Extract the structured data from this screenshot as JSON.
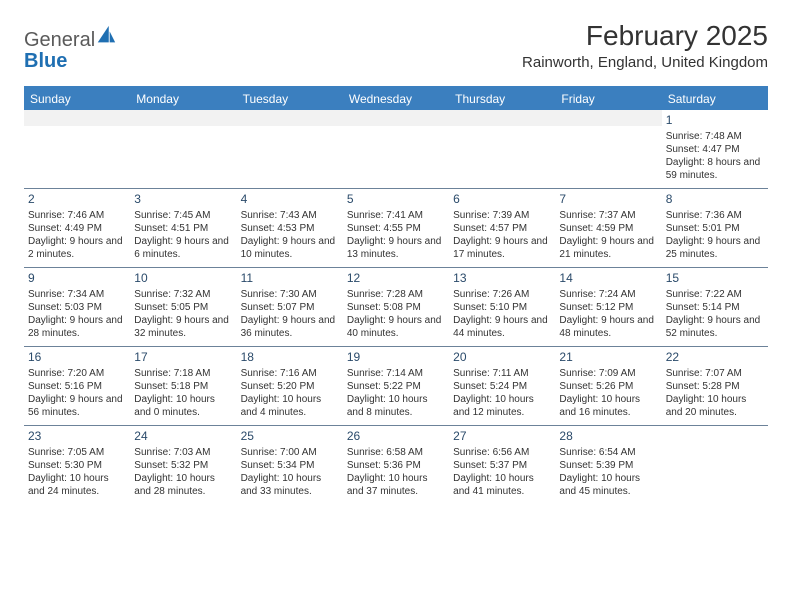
{
  "brand": {
    "part1": "General",
    "part2": "Blue"
  },
  "title": "February 2025",
  "location": "Rainworth, England, United Kingdom",
  "colors": {
    "header_bg": "#3b7fbf",
    "header_text": "#ffffff",
    "rule": "#6c8299",
    "daynum": "#2a4a6a",
    "text": "#333333",
    "empty": "#f2f2f2",
    "logo_gray": "#5a5a5a",
    "logo_blue": "#1f6fb2"
  },
  "typography": {
    "title_fontsize": 28,
    "location_fontsize": 15,
    "dow_fontsize": 12,
    "daynum_fontsize": 12,
    "body_fontsize": 10,
    "logo_fontsize": 20
  },
  "days_of_week": [
    "Sunday",
    "Monday",
    "Tuesday",
    "Wednesday",
    "Thursday",
    "Friday",
    "Saturday"
  ],
  "weeks": [
    [
      null,
      null,
      null,
      null,
      null,
      null,
      {
        "n": "1",
        "sunrise": "Sunrise: 7:48 AM",
        "sunset": "Sunset: 4:47 PM",
        "daylight": "Daylight: 8 hours and 59 minutes."
      }
    ],
    [
      {
        "n": "2",
        "sunrise": "Sunrise: 7:46 AM",
        "sunset": "Sunset: 4:49 PM",
        "daylight": "Daylight: 9 hours and 2 minutes."
      },
      {
        "n": "3",
        "sunrise": "Sunrise: 7:45 AM",
        "sunset": "Sunset: 4:51 PM",
        "daylight": "Daylight: 9 hours and 6 minutes."
      },
      {
        "n": "4",
        "sunrise": "Sunrise: 7:43 AM",
        "sunset": "Sunset: 4:53 PM",
        "daylight": "Daylight: 9 hours and 10 minutes."
      },
      {
        "n": "5",
        "sunrise": "Sunrise: 7:41 AM",
        "sunset": "Sunset: 4:55 PM",
        "daylight": "Daylight: 9 hours and 13 minutes."
      },
      {
        "n": "6",
        "sunrise": "Sunrise: 7:39 AM",
        "sunset": "Sunset: 4:57 PM",
        "daylight": "Daylight: 9 hours and 17 minutes."
      },
      {
        "n": "7",
        "sunrise": "Sunrise: 7:37 AM",
        "sunset": "Sunset: 4:59 PM",
        "daylight": "Daylight: 9 hours and 21 minutes."
      },
      {
        "n": "8",
        "sunrise": "Sunrise: 7:36 AM",
        "sunset": "Sunset: 5:01 PM",
        "daylight": "Daylight: 9 hours and 25 minutes."
      }
    ],
    [
      {
        "n": "9",
        "sunrise": "Sunrise: 7:34 AM",
        "sunset": "Sunset: 5:03 PM",
        "daylight": "Daylight: 9 hours and 28 minutes."
      },
      {
        "n": "10",
        "sunrise": "Sunrise: 7:32 AM",
        "sunset": "Sunset: 5:05 PM",
        "daylight": "Daylight: 9 hours and 32 minutes."
      },
      {
        "n": "11",
        "sunrise": "Sunrise: 7:30 AM",
        "sunset": "Sunset: 5:07 PM",
        "daylight": "Daylight: 9 hours and 36 minutes."
      },
      {
        "n": "12",
        "sunrise": "Sunrise: 7:28 AM",
        "sunset": "Sunset: 5:08 PM",
        "daylight": "Daylight: 9 hours and 40 minutes."
      },
      {
        "n": "13",
        "sunrise": "Sunrise: 7:26 AM",
        "sunset": "Sunset: 5:10 PM",
        "daylight": "Daylight: 9 hours and 44 minutes."
      },
      {
        "n": "14",
        "sunrise": "Sunrise: 7:24 AM",
        "sunset": "Sunset: 5:12 PM",
        "daylight": "Daylight: 9 hours and 48 minutes."
      },
      {
        "n": "15",
        "sunrise": "Sunrise: 7:22 AM",
        "sunset": "Sunset: 5:14 PM",
        "daylight": "Daylight: 9 hours and 52 minutes."
      }
    ],
    [
      {
        "n": "16",
        "sunrise": "Sunrise: 7:20 AM",
        "sunset": "Sunset: 5:16 PM",
        "daylight": "Daylight: 9 hours and 56 minutes."
      },
      {
        "n": "17",
        "sunrise": "Sunrise: 7:18 AM",
        "sunset": "Sunset: 5:18 PM",
        "daylight": "Daylight: 10 hours and 0 minutes."
      },
      {
        "n": "18",
        "sunrise": "Sunrise: 7:16 AM",
        "sunset": "Sunset: 5:20 PM",
        "daylight": "Daylight: 10 hours and 4 minutes."
      },
      {
        "n": "19",
        "sunrise": "Sunrise: 7:14 AM",
        "sunset": "Sunset: 5:22 PM",
        "daylight": "Daylight: 10 hours and 8 minutes."
      },
      {
        "n": "20",
        "sunrise": "Sunrise: 7:11 AM",
        "sunset": "Sunset: 5:24 PM",
        "daylight": "Daylight: 10 hours and 12 minutes."
      },
      {
        "n": "21",
        "sunrise": "Sunrise: 7:09 AM",
        "sunset": "Sunset: 5:26 PM",
        "daylight": "Daylight: 10 hours and 16 minutes."
      },
      {
        "n": "22",
        "sunrise": "Sunrise: 7:07 AM",
        "sunset": "Sunset: 5:28 PM",
        "daylight": "Daylight: 10 hours and 20 minutes."
      }
    ],
    [
      {
        "n": "23",
        "sunrise": "Sunrise: 7:05 AM",
        "sunset": "Sunset: 5:30 PM",
        "daylight": "Daylight: 10 hours and 24 minutes."
      },
      {
        "n": "24",
        "sunrise": "Sunrise: 7:03 AM",
        "sunset": "Sunset: 5:32 PM",
        "daylight": "Daylight: 10 hours and 28 minutes."
      },
      {
        "n": "25",
        "sunrise": "Sunrise: 7:00 AM",
        "sunset": "Sunset: 5:34 PM",
        "daylight": "Daylight: 10 hours and 33 minutes."
      },
      {
        "n": "26",
        "sunrise": "Sunrise: 6:58 AM",
        "sunset": "Sunset: 5:36 PM",
        "daylight": "Daylight: 10 hours and 37 minutes."
      },
      {
        "n": "27",
        "sunrise": "Sunrise: 6:56 AM",
        "sunset": "Sunset: 5:37 PM",
        "daylight": "Daylight: 10 hours and 41 minutes."
      },
      {
        "n": "28",
        "sunrise": "Sunrise: 6:54 AM",
        "sunset": "Sunset: 5:39 PM",
        "daylight": "Daylight: 10 hours and 45 minutes."
      },
      null
    ]
  ]
}
